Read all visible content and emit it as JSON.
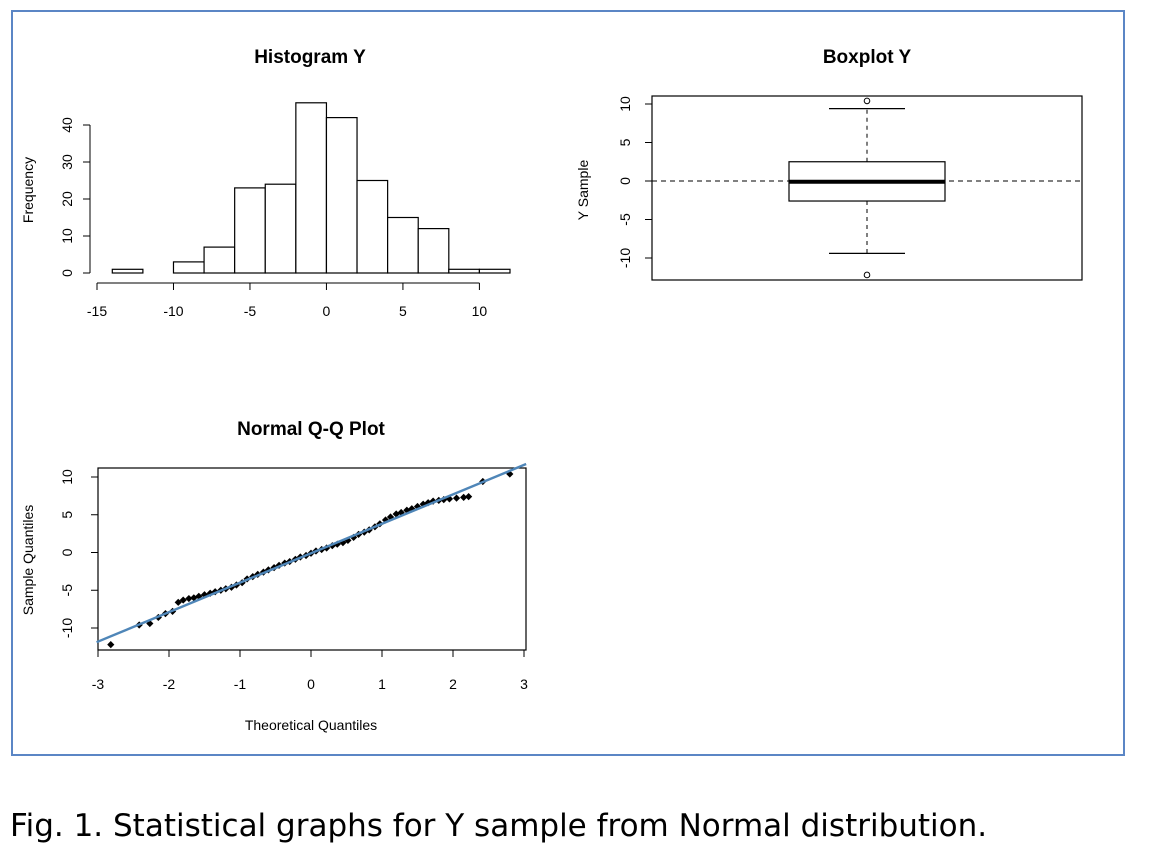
{
  "caption": "Fig. 1. Statistical graphs for Y sample from Normal distribution.",
  "colors": {
    "frame": "#5b86c5",
    "qq_line": "#4f86b8"
  },
  "chart_data": [
    {
      "type": "bar",
      "title": "Histogram Y",
      "xlabel": "",
      "ylabel": "Frequency",
      "bin_edges": [
        -14,
        -12,
        -10,
        -8,
        -6,
        -4,
        -2,
        0,
        2,
        4,
        6,
        8,
        10,
        12
      ],
      "counts": [
        1,
        0,
        3,
        7,
        23,
        24,
        46,
        42,
        25,
        15,
        12,
        1,
        1
      ],
      "xlim": [
        -15,
        12
      ],
      "ylim": [
        0,
        48
      ],
      "xticks": [
        -15,
        -10,
        -5,
        0,
        5,
        10
      ],
      "yticks": [
        0,
        10,
        20,
        30,
        40
      ]
    },
    {
      "type": "box",
      "title": "Boxplot Y",
      "ylabel": "Y Sample",
      "stats": {
        "min": -9.4,
        "q1": -2.6,
        "median": -0.1,
        "q3": 2.5,
        "max": 9.4
      },
      "outliers": [
        10.4,
        -12.2
      ],
      "reference_line": 0,
      "ylim": [
        -12.5,
        11
      ],
      "yticks": [
        -10,
        -5,
        0,
        5,
        10
      ]
    },
    {
      "type": "scatter",
      "title": "Normal Q-Q Plot",
      "xlabel": "Theoretical Quantiles",
      "ylabel": "Sample Quantiles",
      "xlim": [
        -3,
        3
      ],
      "ylim": [
        -12.5,
        11
      ],
      "xticks": [
        -3,
        -2,
        -1,
        0,
        1,
        2,
        3
      ],
      "yticks": [
        -10,
        -5,
        0,
        5,
        10
      ],
      "reference_line": {
        "intercept": -0.1,
        "slope": 3.9
      },
      "points": [
        [
          -2.82,
          -12.2
        ],
        [
          -2.42,
          -9.6
        ],
        [
          -2.27,
          -9.4
        ],
        [
          -2.15,
          -8.6
        ],
        [
          -2.05,
          -8.1
        ],
        [
          -1.95,
          -7.8
        ],
        [
          -1.87,
          -6.6
        ],
        [
          -1.8,
          -6.3
        ],
        [
          -1.72,
          -6.1
        ],
        [
          -1.65,
          -6.0
        ],
        [
          -1.58,
          -5.8
        ],
        [
          -1.5,
          -5.6
        ],
        [
          -1.42,
          -5.4
        ],
        [
          -1.35,
          -5.2
        ],
        [
          -1.27,
          -5.0
        ],
        [
          -1.2,
          -4.8
        ],
        [
          -1.12,
          -4.6
        ],
        [
          -1.05,
          -4.3
        ],
        [
          -0.97,
          -4.0
        ],
        [
          -0.9,
          -3.5
        ],
        [
          -0.82,
          -3.2
        ],
        [
          -0.75,
          -2.9
        ],
        [
          -0.67,
          -2.6
        ],
        [
          -0.6,
          -2.3
        ],
        [
          -0.52,
          -2.0
        ],
        [
          -0.45,
          -1.7
        ],
        [
          -0.37,
          -1.4
        ],
        [
          -0.3,
          -1.2
        ],
        [
          -0.22,
          -0.9
        ],
        [
          -0.15,
          -0.6
        ],
        [
          -0.07,
          -0.4
        ],
        [
          0.0,
          -0.1
        ],
        [
          0.07,
          0.2
        ],
        [
          0.15,
          0.4
        ],
        [
          0.22,
          0.6
        ],
        [
          0.3,
          0.9
        ],
        [
          0.37,
          1.1
        ],
        [
          0.45,
          1.3
        ],
        [
          0.52,
          1.6
        ],
        [
          0.6,
          2.0
        ],
        [
          0.67,
          2.4
        ],
        [
          0.75,
          2.7
        ],
        [
          0.82,
          3.0
        ],
        [
          0.9,
          3.4
        ],
        [
          0.97,
          3.8
        ],
        [
          1.05,
          4.3
        ],
        [
          1.12,
          4.7
        ],
        [
          1.2,
          5.1
        ],
        [
          1.27,
          5.3
        ],
        [
          1.35,
          5.6
        ],
        [
          1.42,
          5.8
        ],
        [
          1.5,
          6.1
        ],
        [
          1.58,
          6.4
        ],
        [
          1.65,
          6.6
        ],
        [
          1.72,
          6.8
        ],
        [
          1.8,
          6.9
        ],
        [
          1.87,
          7.0
        ],
        [
          1.95,
          7.1
        ],
        [
          2.05,
          7.2
        ],
        [
          2.15,
          7.3
        ],
        [
          2.22,
          7.4
        ],
        [
          2.42,
          9.4
        ],
        [
          2.8,
          10.4
        ]
      ]
    }
  ]
}
